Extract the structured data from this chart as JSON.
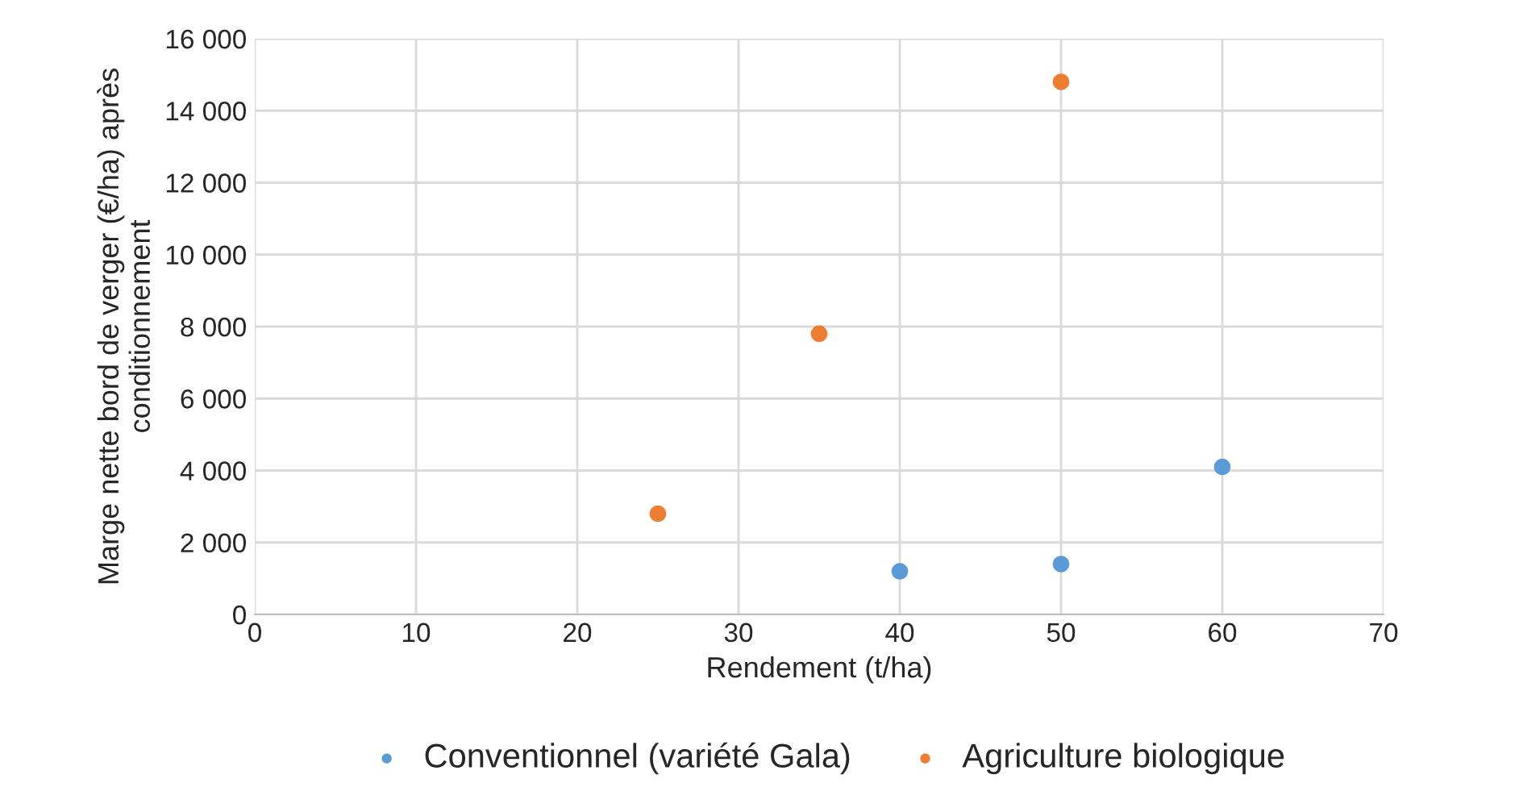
{
  "chart_data": {
    "type": "scatter",
    "xlabel": "Rendement (t/ha)",
    "ylabel": "Marge nette bord de verger (€/ha) après conditionnement",
    "series": [
      {
        "name": "Conventionnel (variété Gala)",
        "color": "#5b9bd5",
        "x": [
          40,
          50,
          60
        ],
        "values": [
          1200,
          1400,
          4100
        ]
      },
      {
        "name": "Agriculture biologique",
        "color": "#ed7d31",
        "x": [
          25,
          35,
          50
        ],
        "values": [
          2800,
          7800,
          14800
        ]
      }
    ],
    "xlim": [
      0,
      70
    ],
    "xticks": [
      0,
      10,
      20,
      30,
      40,
      50,
      60,
      70
    ],
    "ylim": [
      0,
      16000
    ],
    "yticks": [
      0,
      {
        "value": 2000,
        "label": "2 000"
      },
      {
        "value": 4000,
        "label": "4 000"
      },
      {
        "value": 6000,
        "label": "6 000"
      },
      {
        "value": 8000,
        "label": "8 000"
      },
      {
        "value": 10000,
        "label": "10 000"
      },
      {
        "value": 12000,
        "label": "12 000"
      },
      {
        "value": 14000,
        "label": "14 000"
      },
      {
        "value": 16000,
        "label": "16 000"
      }
    ],
    "grid": true,
    "legend": "bottom",
    "marker": "circle"
  }
}
